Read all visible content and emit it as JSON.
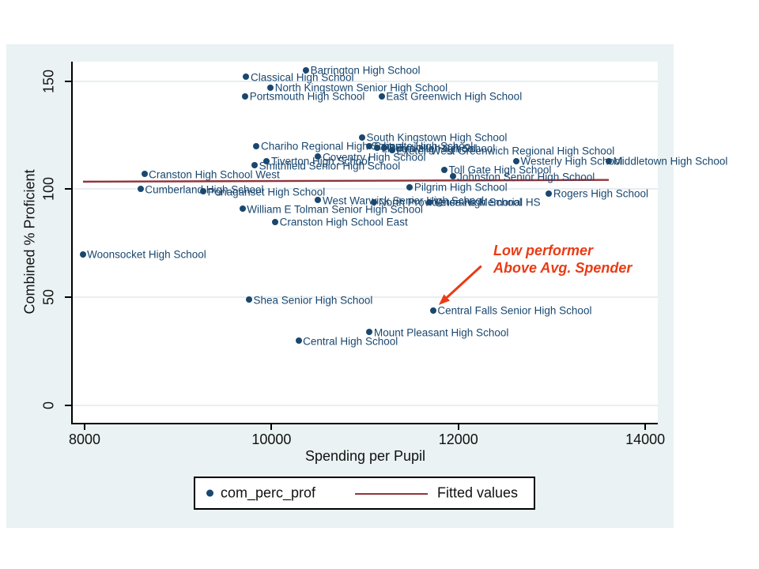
{
  "chart_data": {
    "type": "scatter",
    "title": "",
    "xlabel": "Spending per Pupil",
    "ylabel": "Combined % Proficient",
    "xlim": [
      7873,
      14134
    ],
    "ylim": [
      -8,
      159
    ],
    "xticks": [
      "8000",
      "10000",
      "12000",
      "14000"
    ],
    "yticks": [
      "0",
      "50",
      "100",
      "150"
    ],
    "grid": "horizontal-gridlines-on",
    "colors": {
      "point": "#1a476f",
      "point_label": "#1a476f",
      "fitted_line": "#90353b",
      "annotation": "#ea3b14",
      "graph_background": "#eaf2f3",
      "plot_background": "#ffffff",
      "gridline": "#e8eef0",
      "axis": "#000000"
    },
    "legend": {
      "position": "bottom",
      "series_label": "com_perc_prof",
      "fit_label": "Fitted values"
    },
    "fitted_line": {
      "x1": 7983,
      "y1": 103.5,
      "x2": 13610,
      "y2": 104.3
    },
    "annotation": {
      "line1": "Low performer",
      "line2": "Above Avg. Spender",
      "arrow": {
        "x1": 12245,
        "y1": 64.5,
        "x2": 11790,
        "y2": 46.5
      }
    },
    "points": [
      {
        "name": "Barrington High School",
        "x": 10370,
        "y": 155
      },
      {
        "name": "Classical High School",
        "x": 9730,
        "y": 152
      },
      {
        "name": "North Kingstown Senior High School",
        "x": 9990,
        "y": 147
      },
      {
        "name": "Portsmouth High School",
        "x": 9720,
        "y": 143
      },
      {
        "name": "East Greenwich High School",
        "x": 11180,
        "y": 143
      },
      {
        "name": "South Kingstown High School",
        "x": 10970,
        "y": 124
      },
      {
        "name": "Chariho Regional High School",
        "x": 9840,
        "y": 120
      },
      {
        "name": "Scituate High School",
        "x": 11050,
        "y": 120
      },
      {
        "name": "Lincoln High School",
        "x": 11130,
        "y": 119
      },
      {
        "name": "Burrillville High School",
        "x": 11210,
        "y": 119
      },
      {
        "name": "Exeter-West Greenwich Regional High School",
        "x": 11290,
        "y": 118
      },
      {
        "name": "Coventry High School",
        "x": 10500,
        "y": 115
      },
      {
        "name": "Tiverton High School",
        "x": 9950,
        "y": 113
      },
      {
        "name": "Smithfield Senior High School",
        "x": 9820,
        "y": 111
      },
      {
        "name": "Westerly High School",
        "x": 12620,
        "y": 113
      },
      {
        "name": "Middletown High School",
        "x": 13610,
        "y": 113
      },
      {
        "name": "Toll Gate High School",
        "x": 11850,
        "y": 109
      },
      {
        "name": "Johnston Senior High School",
        "x": 11940,
        "y": 106
      },
      {
        "name": "Cranston High School West",
        "x": 8640,
        "y": 107
      },
      {
        "name": "Cumberland High School",
        "x": 8600,
        "y": 100
      },
      {
        "name": "Ponaganset High School",
        "x": 9270,
        "y": 99
      },
      {
        "name": "Pilgrim High School",
        "x": 11480,
        "y": 101
      },
      {
        "name": "Rogers High School",
        "x": 12970,
        "y": 98
      },
      {
        "name": "West Warwick Senior High School",
        "x": 10500,
        "y": 95
      },
      {
        "name": "North Providence High School",
        "x": 11100,
        "y": 94
      },
      {
        "name": "Veterans Memorial HS",
        "x": 11690,
        "y": 94
      },
      {
        "name": "William E Tolman Senior High School",
        "x": 9690,
        "y": 91
      },
      {
        "name": "Cranston High School East",
        "x": 10040,
        "y": 85
      },
      {
        "name": "Woonsocket High School",
        "x": 7980,
        "y": 70
      },
      {
        "name": "Shea Senior High School",
        "x": 9760,
        "y": 49
      },
      {
        "name": "Central Falls Senior High School",
        "x": 11730,
        "y": 44
      },
      {
        "name": "Mount Pleasant High School",
        "x": 11050,
        "y": 34
      },
      {
        "name": "Central High School",
        "x": 10290,
        "y": 30
      }
    ]
  }
}
